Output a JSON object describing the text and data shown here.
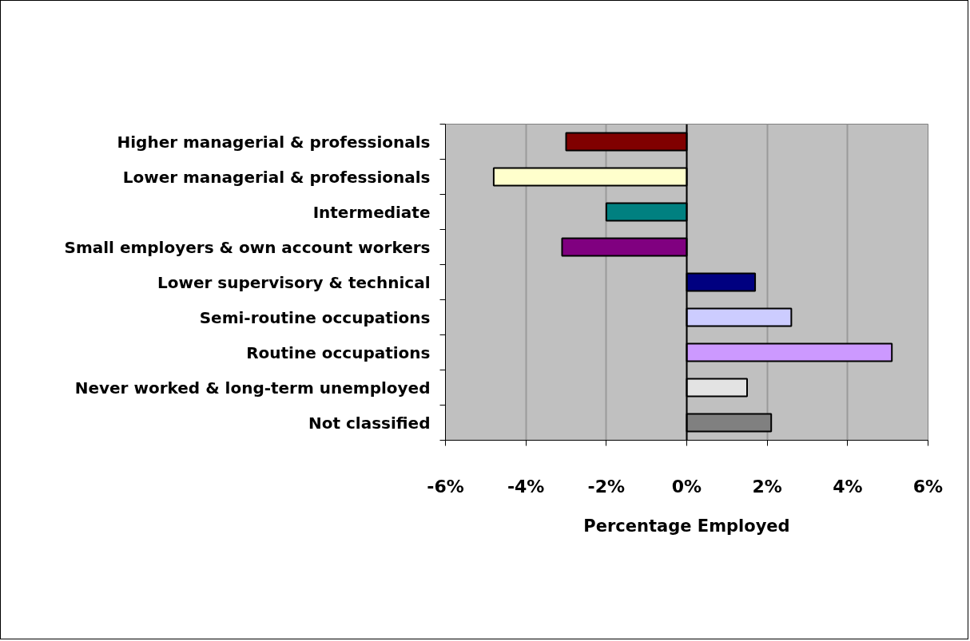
{
  "chart_data": {
    "type": "bar",
    "orientation": "horizontal",
    "xlabel": "Percentage Employed",
    "categories": [
      "Higher managerial & professionals",
      "Lower managerial & professionals",
      "Intermediate",
      "Small employers & own account workers",
      "Lower supervisory & technical",
      "Semi-routine occupations",
      "Routine occupations",
      "Never worked & long-term unemployed",
      "Not classified"
    ],
    "values": [
      -3.0,
      -4.8,
      -2.0,
      -3.1,
      1.7,
      2.6,
      5.1,
      1.5,
      2.1
    ],
    "colors": [
      "#800000",
      "#ffffcc",
      "#008080",
      "#800080",
      "#000080",
      "#ccccff",
      "#cc99ff",
      "#e3e3e3",
      "#808080"
    ],
    "xlim": [
      -6,
      6
    ],
    "xticks": [
      {
        "value": -6,
        "label": "-6%"
      },
      {
        "value": -4,
        "label": "-4%"
      },
      {
        "value": -2,
        "label": "-2%"
      },
      {
        "value": 0,
        "label": "0%"
      },
      {
        "value": 2,
        "label": "2%"
      },
      {
        "value": 4,
        "label": "4%"
      },
      {
        "value": 6,
        "label": "6%"
      }
    ],
    "grid": "x"
  }
}
